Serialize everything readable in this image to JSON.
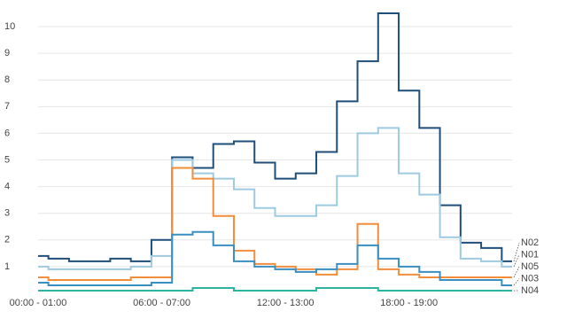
{
  "chart_data": {
    "type": "step-line",
    "categories": [
      "00:00 - 01:00",
      null,
      null,
      null,
      null,
      null,
      "06:00 - 07:00",
      null,
      null,
      null,
      null,
      null,
      "12:00 - 13:00",
      null,
      null,
      null,
      null,
      null,
      "18:00 - 19:00",
      null,
      null,
      null,
      null,
      null
    ],
    "ylim": [
      0,
      10.5
    ],
    "yticks": [
      1,
      2,
      3,
      4,
      5,
      6,
      7,
      8,
      9,
      10
    ],
    "grid": true,
    "series": [
      {
        "name": "N02",
        "color": "#1f4e79",
        "values": [
          1.4,
          1.3,
          1.2,
          1.2,
          1.3,
          1.2,
          2.0,
          5.1,
          4.7,
          5.6,
          5.7,
          4.9,
          4.3,
          4.5,
          5.3,
          7.2,
          8.7,
          10.5,
          7.6,
          6.2,
          3.3,
          1.9,
          1.7,
          1.2
        ]
      },
      {
        "name": "N01",
        "color": "#9ecae1",
        "values": [
          1.0,
          0.9,
          0.9,
          0.9,
          0.9,
          1.0,
          1.4,
          5.0,
          4.5,
          4.3,
          3.9,
          3.2,
          2.9,
          2.9,
          3.3,
          4.4,
          6.0,
          6.2,
          4.5,
          3.7,
          2.1,
          1.3,
          1.2,
          1.0
        ]
      },
      {
        "name": "N05",
        "color": "#f28e3b",
        "values": [
          0.6,
          0.5,
          0.5,
          0.5,
          0.5,
          0.6,
          0.6,
          4.7,
          4.3,
          2.9,
          1.6,
          1.1,
          1.0,
          0.9,
          0.7,
          0.9,
          2.6,
          0.9,
          0.7,
          0.6,
          0.6,
          0.6,
          0.6,
          0.6
        ]
      },
      {
        "name": "N03",
        "color": "#3a8fc2",
        "values": [
          0.4,
          0.3,
          0.3,
          0.3,
          0.3,
          0.3,
          0.4,
          2.2,
          2.3,
          1.8,
          1.2,
          1.0,
          0.9,
          0.8,
          0.9,
          1.1,
          1.8,
          1.3,
          1.0,
          0.8,
          0.5,
          0.5,
          0.5,
          0.3
        ]
      },
      {
        "name": "N04",
        "color": "#2bb5a0",
        "values": [
          0.1,
          0.1,
          0.1,
          0.1,
          0.1,
          0.1,
          0.1,
          0.1,
          0.2,
          0.2,
          0.1,
          0.1,
          0.1,
          0.1,
          0.2,
          0.2,
          0.2,
          0.1,
          0.1,
          0.1,
          0.1,
          0.1,
          0.1,
          0.1
        ]
      }
    ]
  }
}
